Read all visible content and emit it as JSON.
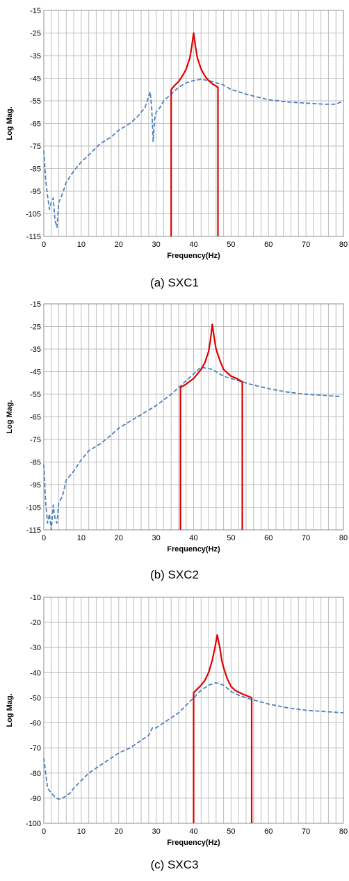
{
  "charts": [
    {
      "caption": "(a) SXC1",
      "chart_data": {
        "type": "line",
        "xlabel": "Frequency(Hz)",
        "ylabel": "Log Mag.",
        "xlim": [
          0,
          80
        ],
        "ylim": [
          -115,
          -15
        ],
        "xticks": [
          "0",
          "10",
          "20",
          "30",
          "40",
          "50",
          "60",
          "70",
          "80"
        ],
        "yticks": [
          "-15",
          "-25",
          "-35",
          "-45",
          "-55",
          "-65",
          "-75",
          "-85",
          "-95",
          "-105",
          "-115"
        ],
        "grid": "vertical-every-2-horizontal-every-10",
        "series": [
          {
            "style": "dashed",
            "color": "#4f81bd",
            "x": [
              0,
              0.5,
              1,
              1.5,
              2,
              2.5,
              3,
              3.5,
              4,
              5,
              6,
              8,
              10,
              12,
              15,
              18,
              20,
              23,
              25,
              27,
              28,
              28.4,
              28.8,
              29.2,
              29.6,
              30,
              31,
              32,
              34,
              36,
              38,
              40,
              42,
              44,
              46,
              48,
              50,
              55,
              60,
              65,
              70,
              75,
              78,
              80
            ],
            "y": [
              -77,
              -90,
              -97,
              -103,
              -100,
              -98,
              -108,
              -111,
              -100,
              -96,
              -91,
              -86,
              -82,
              -79,
              -74,
              -71,
              -68,
              -65,
              -62,
              -58,
              -53,
              -51,
              -58,
              -73,
              -63,
              -60,
              -58,
              -55,
              -52,
              -49,
              -47,
              -46,
              -45.5,
              -46,
              -47,
              -48,
              -50,
              -52.5,
              -54.5,
              -55.5,
              -56,
              -56.5,
              -56.5,
              -55
            ]
          },
          {
            "style": "solid",
            "color": "#e00000",
            "x": [
              34,
              34,
              35,
              36,
              37,
              38,
              39,
              39.5,
              40,
              40.5,
              41,
              42,
              43,
              44,
              45,
              46.5,
              46.5
            ],
            "y": [
              -115,
              -50,
              -48,
              -46.5,
              -44,
              -41,
              -36,
              -31,
              -25,
              -31,
              -36,
              -41,
              -44,
              -46,
              -47.5,
              -49,
              -115
            ]
          }
        ]
      }
    },
    {
      "caption": "(b) SXC2",
      "chart_data": {
        "type": "line",
        "xlabel": "Frequency(Hz)",
        "ylabel": "Log Mag.",
        "xlim": [
          0,
          80
        ],
        "ylim": [
          -115,
          -15
        ],
        "xticks": [
          "0",
          "10",
          "20",
          "30",
          "40",
          "50",
          "60",
          "70",
          "80"
        ],
        "yticks": [
          "-15",
          "-25",
          "-35",
          "-45",
          "-55",
          "-65",
          "-75",
          "-85",
          "-95",
          "-105",
          "-115"
        ],
        "grid": "vertical-every-2-horizontal-every-10",
        "series": [
          {
            "style": "dashed",
            "color": "#4f81bd",
            "x": [
              0,
              0.5,
              1,
              1.5,
              2,
              2.5,
              3,
              3.5,
              4,
              5,
              6,
              8,
              10,
              12,
              15,
              18,
              20,
              23,
              25,
              28,
              30,
              32,
              34,
              36,
              38,
              40,
              42,
              45,
              48,
              50,
              53,
              55,
              60,
              65,
              70,
              75,
              79
            ],
            "y": [
              -86,
              -103,
              -112,
              -108,
              -115,
              -104,
              -110,
              -112,
              -103,
              -100,
              -93,
              -89,
              -84,
              -80,
              -77,
              -73,
              -70,
              -67,
              -65,
              -62,
              -60,
              -57.5,
              -55,
              -52,
              -49,
              -46,
              -43,
              -44,
              -47,
              -48,
              -49.5,
              -50.5,
              -52.5,
              -54,
              -55,
              -55.5,
              -56
            ]
          },
          {
            "style": "solid",
            "color": "#e00000",
            "x": [
              36.5,
              36.5,
              38,
              40,
              42,
              43,
              44,
              44.5,
              45,
              45.5,
              46,
              47,
              48,
              50,
              51.5,
              53,
              53
            ],
            "y": [
              -115,
              -52,
              -50.5,
              -48,
              -44,
              -41,
              -36,
              -31,
              -24,
              -30,
              -35,
              -40,
              -44,
              -47,
              -48,
              -49.5,
              -115
            ]
          }
        ]
      }
    },
    {
      "caption": "(c) SXC3",
      "chart_data": {
        "type": "line",
        "xlabel": "Frequency(Hz)",
        "ylabel": "Log Mag.",
        "xlim": [
          0,
          80
        ],
        "ylim": [
          -100,
          -10
        ],
        "xticks": [
          "0",
          "10",
          "20",
          "30",
          "40",
          "50",
          "60",
          "70",
          "80"
        ],
        "yticks": [
          "-10",
          "-20",
          "-30",
          "-40",
          "-50",
          "-60",
          "-70",
          "-80",
          "-90",
          "-100"
        ],
        "grid": "vertical-every-2-horizontal-every-10",
        "series": [
          {
            "style": "dashed",
            "color": "#4f81bd",
            "x": [
              0,
              0.5,
              1,
              2,
              3,
              4,
              5,
              6,
              7,
              8,
              10,
              12,
              15,
              18,
              20,
              23,
              25,
              28,
              29,
              30,
              32,
              34,
              36,
              38,
              40,
              42,
              44,
              46,
              48,
              50,
              52,
              55,
              60,
              65,
              70,
              75,
              80
            ],
            "y": [
              -74,
              -80,
              -86,
              -88,
              -89.5,
              -90.5,
              -90,
              -89,
              -88,
              -86,
              -83,
              -80,
              -77,
              -74,
              -72,
              -70,
              -68,
              -65,
              -62,
              -62,
              -60,
              -58,
              -56,
              -53,
              -50,
              -47,
              -45,
              -44,
              -45,
              -47.5,
              -49,
              -50.5,
              -52.5,
              -54,
              -55,
              -55.5,
              -56
            ]
          },
          {
            "style": "solid",
            "color": "#e00000",
            "x": [
              40,
              40,
              41,
              42,
              43,
              44,
              45,
              45.7,
              46.3,
              47,
              47.5,
              48,
              49,
              50,
              51,
              53,
              55.5,
              55.5
            ],
            "y": [
              -100,
              -48,
              -46.5,
              -45,
              -43,
              -40,
              -35,
              -30,
              -25,
              -30,
              -35,
              -38,
              -42.5,
              -45.5,
              -47,
              -48.5,
              -50,
              -100
            ]
          }
        ]
      }
    }
  ]
}
